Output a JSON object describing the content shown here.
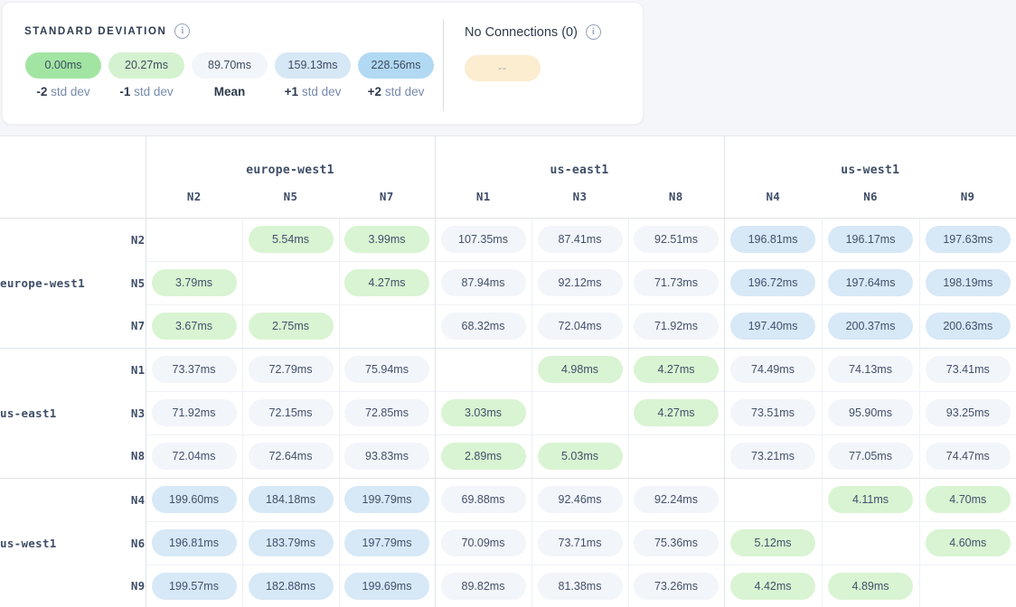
{
  "legend": {
    "title": "STANDARD DEVIATION",
    "items": [
      {
        "value": "0.00ms",
        "label_bold": "-2",
        "label_rest": "std dev",
        "color": "#a2e5a3"
      },
      {
        "value": "20.27ms",
        "label_bold": "-1",
        "label_rest": "std dev",
        "color": "#d5f2d0"
      },
      {
        "value": "89.70ms",
        "label_bold": "Mean",
        "label_rest": "",
        "color": "#f2f6fa"
      },
      {
        "value": "159.13ms",
        "label_bold": "+1",
        "label_rest": "std dev",
        "color": "#d6e7f6"
      },
      {
        "value": "228.56ms",
        "label_bold": "+2",
        "label_rest": "std dev",
        "color": "#b2d9f3"
      }
    ]
  },
  "no_connections": {
    "label": "No Connections (0)",
    "pill_text": "--",
    "pill_color": "#fcecd0"
  },
  "icons": {
    "info": "i"
  },
  "matrix": {
    "groups": [
      "europe-west1",
      "us-east1",
      "us-west1"
    ],
    "column_nodes": [
      "N2",
      "N5",
      "N7",
      "N1",
      "N3",
      "N8",
      "N4",
      "N6",
      "N9"
    ],
    "cell_colors": {
      "green": "#d9f4d2",
      "grey": "#f2f5f9",
      "blue": "#d7e8f7"
    },
    "rows": [
      {
        "region": "europe-west1",
        "node": "N2",
        "cells": [
          null,
          {
            "v": "5.54ms",
            "c": "green"
          },
          {
            "v": "3.99ms",
            "c": "green"
          },
          {
            "v": "107.35ms",
            "c": "grey"
          },
          {
            "v": "87.41ms",
            "c": "grey"
          },
          {
            "v": "92.51ms",
            "c": "grey"
          },
          {
            "v": "196.81ms",
            "c": "blue"
          },
          {
            "v": "196.17ms",
            "c": "blue"
          },
          {
            "v": "197.63ms",
            "c": "blue"
          }
        ]
      },
      {
        "region": "europe-west1",
        "node": "N5",
        "cells": [
          {
            "v": "3.79ms",
            "c": "green"
          },
          null,
          {
            "v": "4.27ms",
            "c": "green"
          },
          {
            "v": "87.94ms",
            "c": "grey"
          },
          {
            "v": "92.12ms",
            "c": "grey"
          },
          {
            "v": "71.73ms",
            "c": "grey"
          },
          {
            "v": "196.72ms",
            "c": "blue"
          },
          {
            "v": "197.64ms",
            "c": "blue"
          },
          {
            "v": "198.19ms",
            "c": "blue"
          }
        ]
      },
      {
        "region": "europe-west1",
        "node": "N7",
        "cells": [
          {
            "v": "3.67ms",
            "c": "green"
          },
          {
            "v": "2.75ms",
            "c": "green"
          },
          null,
          {
            "v": "68.32ms",
            "c": "grey"
          },
          {
            "v": "72.04ms",
            "c": "grey"
          },
          {
            "v": "71.92ms",
            "c": "grey"
          },
          {
            "v": "197.40ms",
            "c": "blue"
          },
          {
            "v": "200.37ms",
            "c": "blue"
          },
          {
            "v": "200.63ms",
            "c": "blue"
          }
        ]
      },
      {
        "region": "us-east1",
        "node": "N1",
        "cells": [
          {
            "v": "73.37ms",
            "c": "grey"
          },
          {
            "v": "72.79ms",
            "c": "grey"
          },
          {
            "v": "75.94ms",
            "c": "grey"
          },
          null,
          {
            "v": "4.98ms",
            "c": "green"
          },
          {
            "v": "4.27ms",
            "c": "green"
          },
          {
            "v": "74.49ms",
            "c": "grey"
          },
          {
            "v": "74.13ms",
            "c": "grey"
          },
          {
            "v": "73.41ms",
            "c": "grey"
          }
        ]
      },
      {
        "region": "us-east1",
        "node": "N3",
        "cells": [
          {
            "v": "71.92ms",
            "c": "grey"
          },
          {
            "v": "72.15ms",
            "c": "grey"
          },
          {
            "v": "72.85ms",
            "c": "grey"
          },
          {
            "v": "3.03ms",
            "c": "green"
          },
          null,
          {
            "v": "4.27ms",
            "c": "green"
          },
          {
            "v": "73.51ms",
            "c": "grey"
          },
          {
            "v": "95.90ms",
            "c": "grey"
          },
          {
            "v": "93.25ms",
            "c": "grey"
          }
        ]
      },
      {
        "region": "us-east1",
        "node": "N8",
        "cells": [
          {
            "v": "72.04ms",
            "c": "grey"
          },
          {
            "v": "72.64ms",
            "c": "grey"
          },
          {
            "v": "93.83ms",
            "c": "grey"
          },
          {
            "v": "2.89ms",
            "c": "green"
          },
          {
            "v": "5.03ms",
            "c": "green"
          },
          null,
          {
            "v": "73.21ms",
            "c": "grey"
          },
          {
            "v": "77.05ms",
            "c": "grey"
          },
          {
            "v": "74.47ms",
            "c": "grey"
          }
        ]
      },
      {
        "region": "us-west1",
        "node": "N4",
        "cells": [
          {
            "v": "199.60ms",
            "c": "blue"
          },
          {
            "v": "184.18ms",
            "c": "blue"
          },
          {
            "v": "199.79ms",
            "c": "blue"
          },
          {
            "v": "69.88ms",
            "c": "grey"
          },
          {
            "v": "92.46ms",
            "c": "grey"
          },
          {
            "v": "92.24ms",
            "c": "grey"
          },
          null,
          {
            "v": "4.11ms",
            "c": "green"
          },
          {
            "v": "4.70ms",
            "c": "green"
          }
        ]
      },
      {
        "region": "us-west1",
        "node": "N6",
        "cells": [
          {
            "v": "196.81ms",
            "c": "blue"
          },
          {
            "v": "183.79ms",
            "c": "blue"
          },
          {
            "v": "197.79ms",
            "c": "blue"
          },
          {
            "v": "70.09ms",
            "c": "grey"
          },
          {
            "v": "73.71ms",
            "c": "grey"
          },
          {
            "v": "75.36ms",
            "c": "grey"
          },
          {
            "v": "5.12ms",
            "c": "green"
          },
          null,
          {
            "v": "4.60ms",
            "c": "green"
          }
        ]
      },
      {
        "region": "us-west1",
        "node": "N9",
        "cells": [
          {
            "v": "199.57ms",
            "c": "blue"
          },
          {
            "v": "182.88ms",
            "c": "blue"
          },
          {
            "v": "199.69ms",
            "c": "blue"
          },
          {
            "v": "89.82ms",
            "c": "grey"
          },
          {
            "v": "81.38ms",
            "c": "grey"
          },
          {
            "v": "73.26ms",
            "c": "grey"
          },
          {
            "v": "4.42ms",
            "c": "green"
          },
          {
            "v": "4.89ms",
            "c": "green"
          },
          null
        ]
      }
    ]
  }
}
